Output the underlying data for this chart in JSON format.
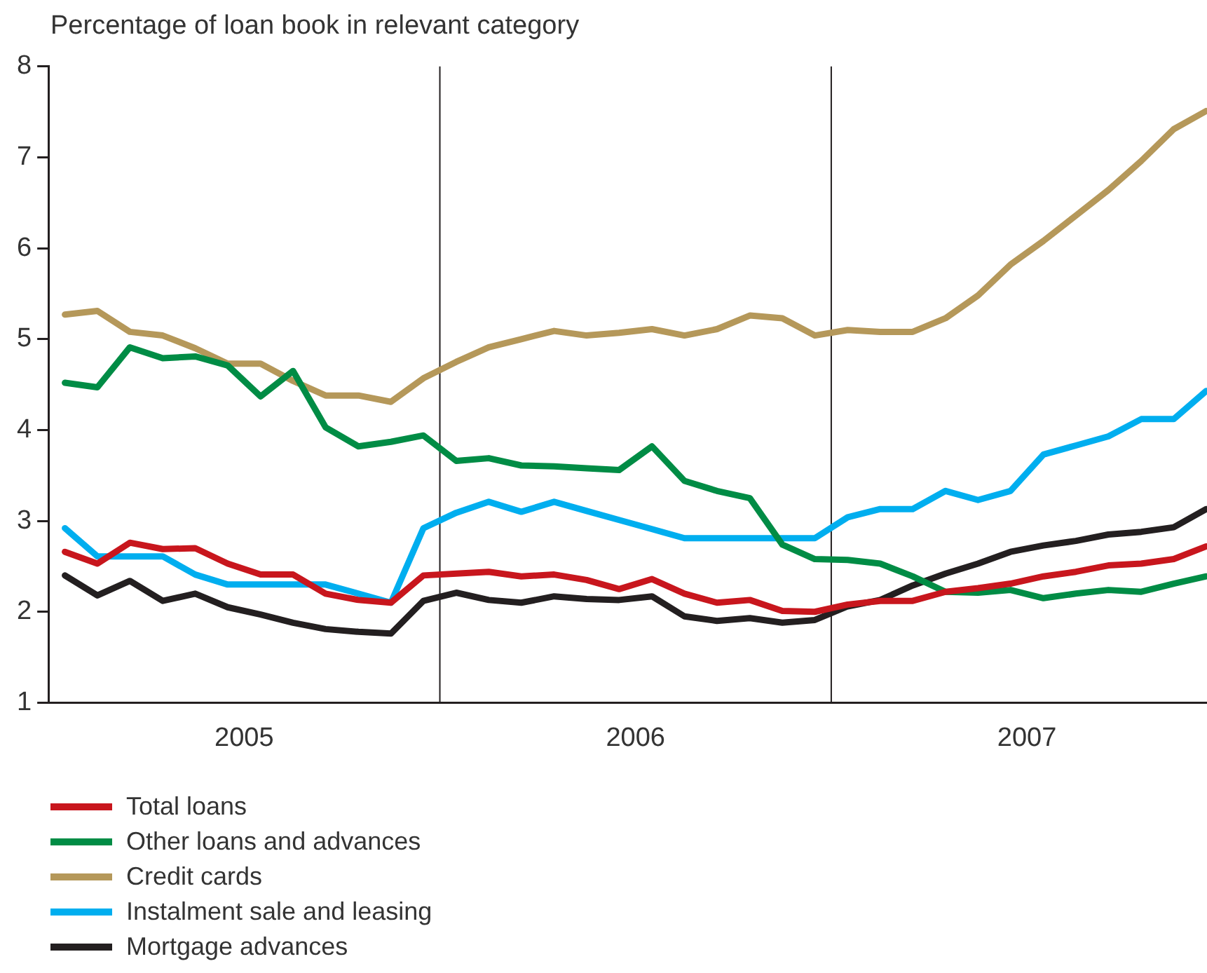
{
  "chart_data": {
    "type": "line",
    "ylabel": "Percentage of loan book in relevant category",
    "x": [
      2005.042,
      2005.125,
      2005.208,
      2005.292,
      2005.375,
      2005.458,
      2005.542,
      2005.625,
      2005.708,
      2005.792,
      2005.875,
      2005.958,
      2006.042,
      2006.125,
      2006.208,
      2006.292,
      2006.375,
      2006.458,
      2006.542,
      2006.625,
      2006.708,
      2006.792,
      2006.875,
      2006.958,
      2007.042,
      2007.125,
      2007.208,
      2007.292,
      2007.375,
      2007.458,
      2007.542,
      2007.625,
      2007.708,
      2007.792,
      2007.875,
      2007.958
    ],
    "xlim": [
      2005,
      2007.96
    ],
    "xticks": [
      {
        "value": 2005.5,
        "label": "2005"
      },
      {
        "value": 2006.5,
        "label": "2006"
      },
      {
        "value": 2007.5,
        "label": "2007"
      }
    ],
    "ylim": [
      1,
      8
    ],
    "yticks": [
      1,
      2,
      3,
      4,
      5,
      6,
      7,
      8
    ],
    "grid": false,
    "legend": "bottom left",
    "marker": "none",
    "line_style": "solid",
    "ref_lines": [
      {
        "axis": "x",
        "value": 2006,
        "color": "#231f20"
      },
      {
        "axis": "x",
        "value": 2007,
        "color": "#231f20"
      }
    ],
    "series": [
      {
        "name": "Total loans",
        "color": "#c8161d",
        "values": [
          2.66,
          2.53,
          2.76,
          2.69,
          2.7,
          2.53,
          2.41,
          2.41,
          2.2,
          2.13,
          2.1,
          2.4,
          2.42,
          2.44,
          2.39,
          2.41,
          2.35,
          2.25,
          2.36,
          2.2,
          2.1,
          2.13,
          2.01,
          2.0,
          2.08,
          2.12,
          2.12,
          2.22,
          2.26,
          2.31,
          2.39,
          2.44,
          2.51,
          2.53,
          2.58,
          2.72
        ]
      },
      {
        "name": "Other loans and advances",
        "color": "#008c45",
        "values": [
          4.52,
          4.47,
          4.91,
          4.79,
          4.81,
          4.71,
          4.37,
          4.65,
          4.03,
          3.82,
          3.87,
          3.94,
          3.66,
          3.69,
          3.61,
          3.6,
          3.58,
          3.56,
          3.82,
          3.44,
          3.33,
          3.25,
          2.74,
          2.58,
          2.57,
          2.53,
          2.39,
          2.22,
          2.21,
          2.24,
          2.15,
          2.2,
          2.24,
          2.22,
          2.31,
          2.39
        ]
      },
      {
        "name": "Credit cards",
        "color": "#b5985a",
        "values": [
          5.27,
          5.31,
          5.08,
          5.04,
          4.9,
          4.73,
          4.73,
          4.54,
          4.38,
          4.38,
          4.31,
          4.57,
          4.75,
          4.91,
          5.0,
          5.09,
          5.04,
          5.07,
          5.11,
          5.04,
          5.11,
          5.26,
          5.23,
          5.04,
          5.1,
          5.08,
          5.08,
          5.23,
          5.48,
          5.82,
          6.08,
          6.36,
          6.64,
          6.96,
          7.31,
          7.51
        ]
      },
      {
        "name": "Instalment sale and leasing",
        "color": "#00aeef",
        "values": [
          2.92,
          2.61,
          2.61,
          2.61,
          2.41,
          2.3,
          2.3,
          2.3,
          2.3,
          2.2,
          2.1,
          2.92,
          3.09,
          3.21,
          3.1,
          3.21,
          3.11,
          3.01,
          2.91,
          2.81,
          2.81,
          2.81,
          2.81,
          2.81,
          3.04,
          3.13,
          3.13,
          3.33,
          3.23,
          3.33,
          3.73,
          3.83,
          3.93,
          4.12,
          4.12,
          4.43
        ]
      },
      {
        "name": "Mortgage advances",
        "color": "#231f20",
        "values": [
          2.4,
          2.18,
          2.34,
          2.12,
          2.2,
          2.05,
          1.97,
          1.88,
          1.81,
          1.78,
          1.76,
          2.12,
          2.21,
          2.13,
          2.1,
          2.17,
          2.14,
          2.13,
          2.17,
          1.95,
          1.9,
          1.93,
          1.88,
          1.91,
          2.06,
          2.13,
          2.29,
          2.42,
          2.53,
          2.66,
          2.73,
          2.78,
          2.85,
          2.88,
          2.93,
          3.13
        ]
      }
    ]
  }
}
